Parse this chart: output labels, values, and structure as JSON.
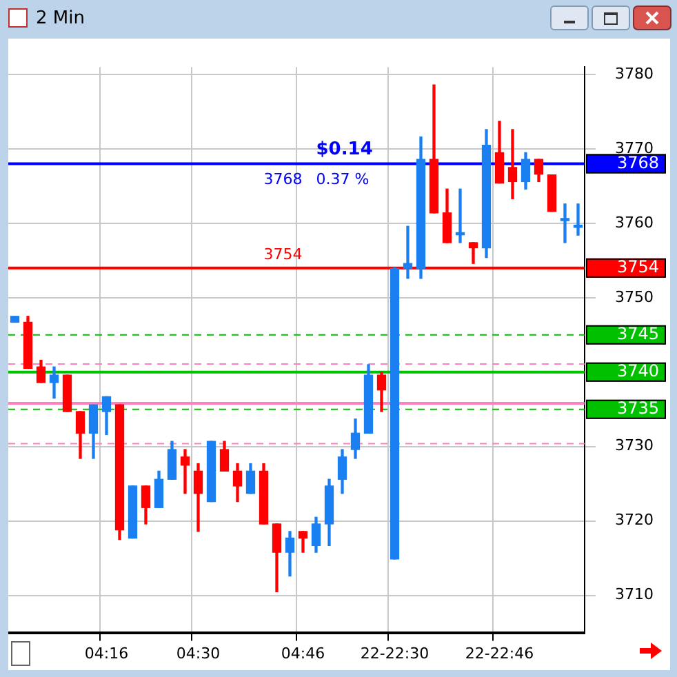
{
  "chart_data": {
    "type": "candlestick",
    "title": "2 Min",
    "categories": [
      null,
      null,
      null,
      null,
      null,
      null,
      null,
      "04:16",
      null,
      null,
      null,
      null,
      null,
      null,
      "04:30",
      null,
      null,
      null,
      null,
      null,
      null,
      null,
      "04:46",
      null,
      null,
      null,
      null,
      null,
      null,
      "22-22:30",
      null,
      null,
      null,
      null,
      null,
      null,
      null,
      "22-22:46",
      null,
      null,
      null,
      null,
      null,
      null
    ],
    "ohlc": [
      [
        3746.7,
        3747.5,
        3746.7,
        3747.5
      ],
      [
        3746.7,
        3747.5,
        3740.5,
        3740.5
      ],
      [
        3740.7,
        3741.6,
        3738.6,
        3738.6
      ],
      [
        3738.6,
        3740.7,
        3736.5,
        3739.6
      ],
      [
        3739.6,
        3739.6,
        3734.7,
        3734.7
      ],
      [
        3734.7,
        3734.7,
        3728.4,
        3731.8
      ],
      [
        3731.8,
        3735.6,
        3728.4,
        3735.6
      ],
      [
        3734.7,
        3736.7,
        3731.6,
        3736.7
      ],
      [
        3735.6,
        3735.6,
        3717.5,
        3718.8
      ],
      [
        3717.7,
        3724.7,
        3717.7,
        3724.7
      ],
      [
        3724.7,
        3724.7,
        3719.6,
        3721.8
      ],
      [
        3721.8,
        3726.7,
        3721.8,
        3725.6
      ],
      [
        3725.6,
        3730.7,
        3725.6,
        3729.6
      ],
      [
        3728.6,
        3729.6,
        3723.7,
        3727.5
      ],
      [
        3726.7,
        3727.7,
        3718.6,
        3723.7
      ],
      [
        3722.6,
        3730.7,
        3722.6,
        3730.7
      ],
      [
        3729.6,
        3730.7,
        3726.7,
        3726.7
      ],
      [
        3726.7,
        3727.7,
        3722.6,
        3724.7
      ],
      [
        3723.7,
        3727.7,
        3723.7,
        3726.7
      ],
      [
        3726.7,
        3727.7,
        3719.6,
        3719.6
      ],
      [
        3719.6,
        3719.6,
        3710.5,
        3715.8
      ],
      [
        3715.8,
        3718.6,
        3712.6,
        3717.7
      ],
      [
        3718.6,
        3718.6,
        3715.8,
        3717.7
      ],
      [
        3716.7,
        3720.5,
        3715.8,
        3719.6
      ],
      [
        3719.6,
        3725.6,
        3716.7,
        3724.7
      ],
      [
        3725.6,
        3729.6,
        3723.7,
        3728.6
      ],
      [
        3729.6,
        3733.7,
        3728.4,
        3731.8
      ],
      [
        3731.8,
        3741,
        3731.8,
        3739.6
      ],
      [
        3739.6,
        3740,
        3734.7,
        3737.6
      ],
      [
        3714.9,
        3754,
        3714.9,
        3753.9
      ],
      [
        3753.9,
        3759.6,
        3752.6,
        3754.6
      ],
      [
        3753.9,
        3771.6,
        3752.6,
        3768.6
      ],
      [
        3768.6,
        3778.6,
        3761.4,
        3761.4
      ],
      [
        3761.4,
        3764.6,
        3757.4,
        3757.4
      ],
      [
        3758.6,
        3764.6,
        3757.4,
        3758.6
      ],
      [
        3757.4,
        3757.4,
        3754.6,
        3756.7
      ],
      [
        3756.7,
        3772.6,
        3755.4,
        3770.5
      ],
      [
        3769.5,
        3773.7,
        3765.4,
        3765.4
      ],
      [
        3767.5,
        3772.6,
        3763.3,
        3765.6
      ],
      [
        3765.6,
        3769.5,
        3764.6,
        3768.6
      ],
      [
        3768.6,
        3768.6,
        3765.6,
        3766.6
      ],
      [
        3766.5,
        3766.5,
        3761.6,
        3761.6
      ],
      [
        3760.5,
        3762.6,
        3757.4,
        3760.5
      ],
      [
        3759.6,
        3762.6,
        3758.4,
        3759.6
      ]
    ],
    "colors": [
      "#1a7ff0",
      "#ff0000",
      "#ff0000",
      "#1a7ff0",
      "#ff0000",
      "#ff0000",
      "#1a7ff0",
      "#1a7ff0",
      "#ff0000",
      "#1a7ff0",
      "#ff0000",
      "#1a7ff0",
      "#1a7ff0",
      "#ff0000",
      "#ff0000",
      "#1a7ff0",
      "#ff0000",
      "#ff0000",
      "#1a7ff0",
      "#ff0000",
      "#ff0000",
      "#1a7ff0",
      "#ff0000",
      "#1a7ff0",
      "#1a7ff0",
      "#1a7ff0",
      "#1a7ff0",
      "#1a7ff0",
      "#ff0000",
      "#1a7ff0",
      "#1a7ff0",
      "#1a7ff0",
      "#ff0000",
      "#ff0000",
      "#1a7ff0",
      "#ff0000",
      "#1a7ff0",
      "#ff0000",
      "#ff0000",
      "#1a7ff0",
      "#ff0000",
      "#ff0000",
      "#1a7ff0",
      "#1a7ff0"
    ],
    "ylim": [
      3705,
      3781
    ],
    "yticks": [
      3710,
      3720,
      3730,
      3740,
      3750,
      3760,
      3770,
      3780
    ],
    "grid": true,
    "ref_lines": [
      {
        "axis": "y",
        "value": 3741.1,
        "color": "#ff80c0",
        "line_style": "dashed"
      },
      {
        "axis": "y",
        "value": 3735.8,
        "color": "#ff80c0",
        "line_style": "solid"
      },
      {
        "axis": "y",
        "value": 3730.4,
        "color": "#ff80c0",
        "line_style": "dashed"
      },
      {
        "axis": "y",
        "value": 3768,
        "label": "3768",
        "color": "#0000ff",
        "line_style": "solid"
      },
      {
        "axis": "y",
        "value": 3754,
        "label": "3754",
        "color": "#ff0000",
        "line_style": "solid"
      },
      {
        "axis": "y",
        "value": 3745,
        "label": "3745",
        "color": "#00c000",
        "line_style": "dashed"
      },
      {
        "axis": "y",
        "value": 3740,
        "label": "3740",
        "color": "#00c000",
        "line_style": "solid"
      },
      {
        "axis": "y",
        "value": 3735,
        "label": "3735",
        "color": "#00c000",
        "line_style": "dashed"
      }
    ],
    "annotations": [
      {
        "text": "3768",
        "y": 3768
      },
      {
        "text": "3754",
        "y": 3754
      },
      {
        "text": "$0.14",
        "y": 3768
      },
      {
        "text": "0.37 %",
        "y": 3768
      }
    ]
  }
}
